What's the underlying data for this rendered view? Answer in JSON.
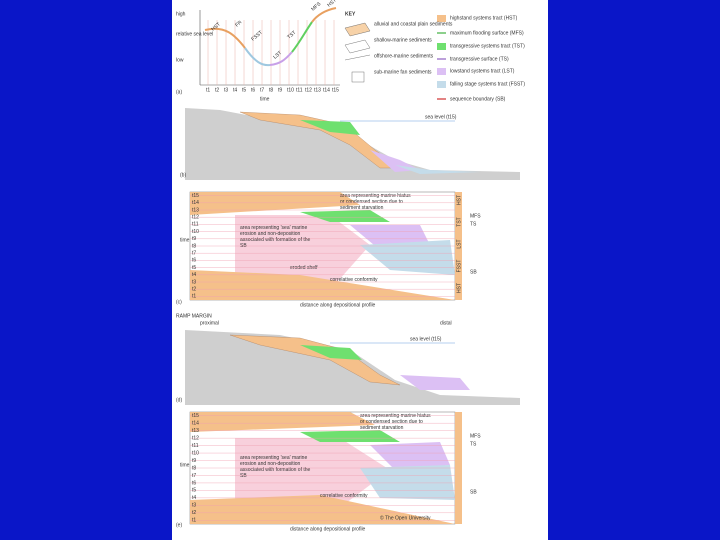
{
  "figure_a": {
    "axis_high": "high",
    "axis_label": "relative sea level",
    "axis_low": "low",
    "curve_labels": [
      "HST",
      "FR",
      "FSST",
      "LST",
      "TST",
      "MFS",
      "HST"
    ],
    "time_labels": [
      "t1",
      "t2",
      "t3",
      "t4",
      "t5",
      "t6",
      "t7",
      "t8",
      "t9",
      "t10",
      "t11",
      "t12",
      "t13",
      "t14",
      "t15"
    ],
    "time_axis": "time",
    "panel": "(a)"
  },
  "key": {
    "title": "KEY",
    "items": [
      "alluvial and coastal plain sediments",
      "shallow-marine sediments",
      "offshore-marine sediments",
      "sub-marine fan sediments"
    ]
  },
  "legend": [
    "highstand systems tract (HST)",
    "maximum flooding surface (MFS)",
    "transgressive systems tract (TST)",
    "transgressive surface (TS)",
    "lowstand systems tract (LST)",
    "falling stage systems tract (FSST)",
    "sequence boundary (SB)"
  ],
  "figure_b": {
    "sea_level": "sea level (t15)",
    "panel": "(b)"
  },
  "figure_c": {
    "axis": "time",
    "hiatus_note": "area representing marine hiatus or condensed section due to sediment starvation",
    "erosion_note": "area representing 'sea' marine erosion and non-deposition associated with formation of the SB",
    "eroded_shelf": "eroded shelf",
    "conformity": "correlative conformity",
    "surfaces": [
      "MFS",
      "TS",
      "SB"
    ],
    "tracts": [
      "HST",
      "TST",
      "LST",
      "FSST",
      "HST"
    ],
    "x_axis": "distance along depositional profile",
    "panel": "(c)"
  },
  "ramp": {
    "title": "RAMP MARGIN",
    "proximal": "proximal",
    "distal": "distal"
  },
  "figure_d": {
    "sea_level": "sea level (t15)",
    "panel": "(d)"
  },
  "figure_e": {
    "axis": "time",
    "hiatus_note": "area representing marine hiatus or condensed section due to sediment starvation",
    "erosion_note": "area representing 'sea' marine erosion and non-deposition associated with formation of the SB",
    "conformity": "correlative conformity",
    "surfaces": [
      "MFS",
      "TS",
      "SB"
    ],
    "x_axis": "distance along depositional profile",
    "panel": "(e)",
    "copyright": "© The Open University"
  }
}
